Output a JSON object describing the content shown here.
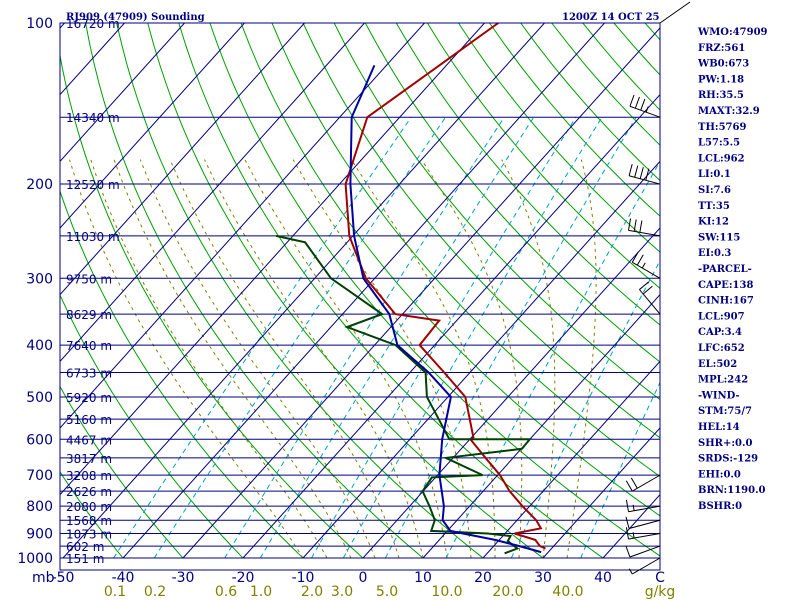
{
  "header": {
    "station": "RJ909 (47909) Sounding",
    "time": "1200Z 14 OCT 25"
  },
  "colors": {
    "frame": "#000080",
    "dry_adiabat": "#00a000",
    "moist_adiabat": "#808000",
    "mixing_ratio": "#00a0c0",
    "temperature": "#a00000",
    "dewpoint": "#004000",
    "parcel": "#0000a0",
    "wind": "#000000"
  },
  "chart_data": {
    "type": "line",
    "title": "RJ909 (47909) Sounding",
    "subtitle": "1200Z 14 OCT 25",
    "xlabel": "C",
    "ylabel": "mb",
    "x_unit": "C",
    "y_unit": "mb",
    "mix_unit": "g/kg",
    "xlim": [
      -50,
      50
    ],
    "ylim": [
      1000,
      100
    ],
    "pressure_ticks": [
      "100",
      "200",
      "300",
      "400",
      "500",
      "600",
      "700",
      "800",
      "900",
      "1000"
    ],
    "pressure_levels": [
      100,
      200,
      300,
      400,
      500,
      600,
      700,
      800,
      900,
      1000
    ],
    "temp_ticks": [
      "-50",
      "-40",
      "-30",
      "-20",
      "-10",
      "0",
      "10",
      "20",
      "30",
      "40",
      "C"
    ],
    "temp_values": [
      -50,
      -40,
      -30,
      -20,
      -10,
      0,
      10,
      20,
      30,
      40
    ],
    "mixing_ratio_labels": [
      "0.1",
      "0.2",
      "0.6",
      "1.0",
      "2.0",
      "3.0",
      "5.0",
      "10.0",
      "20.0",
      "40.0",
      "g/kg"
    ],
    "height_labels": [
      "16720 m",
      "14340 m",
      "12520 m",
      "11030 m",
      "9750 m",
      "8629 m",
      "7640 m",
      "6733 m",
      "5920 m",
      "5160 m",
      "4467 m",
      "3817 m",
      "3208 m",
      "2626 m",
      "2080 m",
      "1568 m",
      "1073 m",
      "602 m",
      "151 m"
    ],
    "height_levels_mb": [
      100,
      150,
      200,
      250,
      300,
      350,
      400,
      450,
      500,
      550,
      600,
      650,
      700,
      750,
      800,
      850,
      900,
      950,
      1000
    ],
    "series": [
      {
        "name": "Temperature",
        "points": [
          [
            -57.7,
            100
          ],
          [
            -65.4,
            150
          ],
          [
            -59.0,
            200
          ],
          [
            -50.6,
            250
          ],
          [
            -41.5,
            300
          ],
          [
            -31.2,
            350
          ],
          [
            -22.9,
            360
          ],
          [
            -22.5,
            400
          ],
          [
            -14.3,
            450
          ],
          [
            -7.1,
            500
          ],
          [
            0.3,
            595
          ],
          [
            0.1,
            600
          ],
          [
            5.4,
            650
          ],
          [
            10.4,
            700
          ],
          [
            14.4,
            750
          ],
          [
            18.8,
            800
          ],
          [
            23.2,
            850
          ],
          [
            25.2,
            880
          ],
          [
            21.6,
            900
          ],
          [
            26.0,
            925
          ],
          [
            27.7,
            950
          ],
          [
            29.0,
            960
          ]
        ]
      },
      {
        "name": "Dewpoint",
        "points": [
          [
            -62.8,
            250
          ],
          [
            -57.0,
            257
          ],
          [
            -47.3,
            300
          ],
          [
            -33.4,
            350
          ],
          [
            -37.3,
            370
          ],
          [
            -26.5,
            400
          ],
          [
            -17.4,
            450
          ],
          [
            -13.5,
            500
          ],
          [
            -3.4,
            600
          ],
          [
            10.0,
            600
          ],
          [
            10.1,
            625
          ],
          [
            -1.2,
            650
          ],
          [
            7.5,
            700
          ],
          [
            -0.6,
            707
          ],
          [
            -0.1,
            750
          ],
          [
            3.3,
            800
          ],
          [
            6.3,
            850
          ],
          [
            7.3,
            890
          ],
          [
            17.1,
            900
          ],
          [
            21.3,
            910
          ],
          [
            21.6,
            930
          ],
          [
            24.3,
            960
          ],
          [
            22.9,
            980
          ]
        ]
      },
      {
        "name": "Parcel",
        "points": [
          [
            -72.0,
            120
          ],
          [
            -68.0,
            150
          ],
          [
            -58.2,
            200
          ],
          [
            -49.8,
            250
          ],
          [
            -41.9,
            300
          ],
          [
            -32.2,
            350
          ],
          [
            -26.2,
            400
          ],
          [
            -16.9,
            450
          ],
          [
            -9.5,
            500
          ],
          [
            -4.6,
            600
          ],
          [
            0.3,
            700
          ],
          [
            5.7,
            800
          ],
          [
            7.6,
            850
          ],
          [
            10.5,
            890
          ],
          [
            13.0,
            900
          ],
          [
            19.3,
            925
          ],
          [
            24.3,
            950
          ],
          [
            28.8,
            975
          ]
        ]
      }
    ],
    "winds": [
      {
        "p": 150,
        "dir": 290,
        "spd": 35
      },
      {
        "p": 200,
        "dir": 285,
        "spd": 40
      },
      {
        "p": 250,
        "dir": 280,
        "spd": 30
      },
      {
        "p": 300,
        "dir": 300,
        "spd": 25
      },
      {
        "p": 350,
        "dir": 320,
        "spd": 20
      },
      {
        "p": 700,
        "dir": 240,
        "spd": 20
      },
      {
        "p": 800,
        "dir": 260,
        "spd": 15
      },
      {
        "p": 850,
        "dir": 255,
        "spd": 10
      },
      {
        "p": 900,
        "dir": 260,
        "spd": 15
      },
      {
        "p": 950,
        "dir": 250,
        "spd": 10
      },
      {
        "p": 1000,
        "dir": 240,
        "spd": 5
      }
    ]
  },
  "indices": [
    "WMO:47909",
    "FRZ:561",
    "WB0:673",
    "PW:1.18",
    "RH:35.5",
    "MAXT:32.9",
    "TH:5769",
    "L57:5.5",
    "LCL:962",
    "LI:0.1",
    "SI:7.6",
    "TT:35",
    "KI:12",
    "SW:115",
    "EI:0.3",
    "-PARCEL-",
    "CAPE:138",
    "CINH:167",
    "LCL:907",
    "CAP:3.4",
    "LFC:652",
    "EL:502",
    "MPL:242",
    "-WIND-",
    "STM:75/7",
    "HEL:14",
    "SHR+:0.0",
    "SRDS:-129",
    "EHI:0.0",
    "BRN:1190.0",
    "BSHR:0"
  ]
}
